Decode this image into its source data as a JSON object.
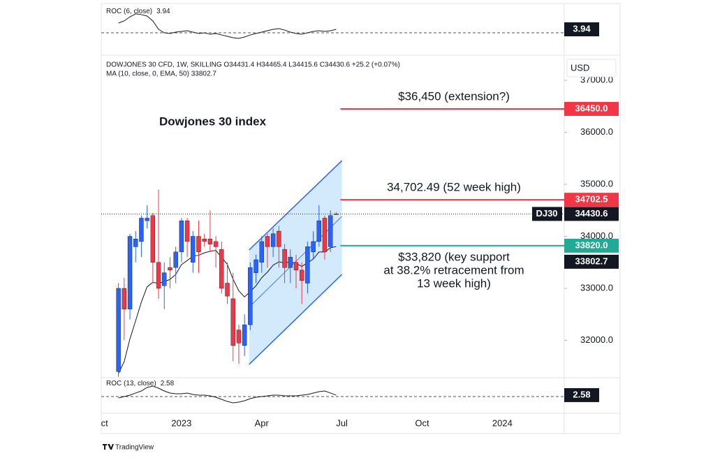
{
  "chart_data": {
    "type": "candlestick",
    "title": "Dowjones 30 index",
    "header": "DOWJONES 30 CFD, 1W, SKILLING  O34431.4  H34465.4  L34415.6  C34430.6  +25.2 (+0.07%)",
    "ma_label": "MA (10, close, 0, EMA, 50)  33802.7",
    "currency": "USD",
    "symbol": "DJ30",
    "up_color": "#2962ff",
    "down_color": "#f23645",
    "open": [
      31400,
      33000,
      32600,
      33800,
      33900,
      34300,
      34400,
      33500,
      33050,
      33400,
      33400,
      33700,
      34300,
      33500,
      34000,
      33950,
      33950,
      33900,
      33750,
      33100,
      32800,
      32200,
      31900,
      32300,
      33300,
      33500,
      34000,
      33800,
      34100,
      33750,
      33400,
      33500,
      33350,
      33100,
      33700,
      33900,
      34350,
      33800,
      34431.4
    ],
    "high": [
      33100,
      33200,
      34050,
      34100,
      34400,
      34600,
      34450,
      34900,
      33500,
      33600,
      33800,
      34350,
      34350,
      34100,
      34300,
      34050,
      34500,
      34000,
      33900,
      33500,
      33300,
      32300,
      32500,
      33500,
      33650,
      34000,
      34050,
      34150,
      34200,
      33850,
      33750,
      33650,
      33500,
      33900,
      34100,
      34600,
      34400,
      34500,
      34465.4
    ],
    "low": [
      31300,
      32000,
      32400,
      33500,
      33600,
      34150,
      33100,
      32800,
      32600,
      33000,
      33100,
      33500,
      33600,
      33300,
      33300,
      33800,
      33700,
      33400,
      32900,
      32700,
      31600,
      31550,
      31700,
      32200,
      33100,
      33300,
      33400,
      33600,
      33400,
      33100,
      33100,
      33000,
      32700,
      32900,
      33550,
      33800,
      33550,
      33700,
      34415.6
    ],
    "close": [
      33000,
      32600,
      34000,
      33950,
      34350,
      34350,
      33500,
      33000,
      33300,
      33350,
      33700,
      34300,
      33900,
      34000,
      33700,
      33900,
      33850,
      33800,
      33000,
      32850,
      31900,
      31950,
      32300,
      33400,
      33550,
      33900,
      33800,
      34050,
      33800,
      33400,
      33600,
      33350,
      33150,
      33800,
      33900,
      34300,
      33700,
      34400,
      34430.6
    ],
    "ma": {
      "color": "#131722",
      "values": [
        31364,
        31589,
        32027,
        32377,
        32736,
        33029,
        33115,
        33094,
        33131,
        33171,
        33267,
        33455,
        33536,
        33620,
        33635,
        33683,
        33713,
        33729,
        33596,
        33460,
        33176,
        32953,
        32834,
        32937,
        33048,
        33203,
        33312,
        33446,
        33510,
        33490,
        33510,
        33481,
        33421,
        33490,
        33565,
        33699,
        33699,
        33780,
        33802.7
      ]
    },
    "levels": [
      {
        "value": 36450,
        "label": "36450.0",
        "text": [
          "$36,450 (extension?)"
        ],
        "color": "#f23645"
      },
      {
        "value": 34702.5,
        "label": "34702.5",
        "text": [
          "34,702.49 (52 week high)"
        ],
        "color": "#f23645"
      },
      {
        "value": 33820,
        "label": "33820.0",
        "text": [
          "$33,820 (key support",
          "at 38.2% retracement from",
          "13 week high)"
        ],
        "color": "#22ab94"
      }
    ],
    "channel": {
      "x": [
        22.8,
        39
      ],
      "upper": [
        33738,
        35456
      ],
      "lower": [
        31537,
        33268
      ],
      "mid": [
        32638,
        34383
      ],
      "color": "#2962ff"
    },
    "ylim": [
      31295,
      37470
    ],
    "yticks": [
      {
        "value": 37000,
        "label": "37000.0"
      },
      {
        "value": 36000,
        "label": "36000.0"
      },
      {
        "value": 35000,
        "label": "35000.0"
      },
      {
        "value": 34000,
        "label": "34000.0"
      },
      {
        "value": 33000,
        "label": "33000.0"
      },
      {
        "value": 32000,
        "label": "32000.0"
      }
    ],
    "xlim": [
      -3,
      77.8
    ],
    "xticks": [
      {
        "value": -3.05,
        "label": "Oct"
      },
      {
        "value": 11,
        "label": "2023"
      },
      {
        "value": 25,
        "label": "Apr"
      },
      {
        "value": 39,
        "label": "Jul"
      },
      {
        "value": 53,
        "label": "Oct"
      },
      {
        "value": 67,
        "label": "2024"
      }
    ],
    "indicators": [
      {
        "name": "ROC (6, close)",
        "last": 3.94,
        "color": "#131722",
        "ylim": [
          -22,
          29.1
        ],
        "yticks": [
          0
        ],
        "values": [
          11,
          13.4,
          18,
          21.3,
          20.5,
          18.9,
          13.4,
          3.9,
          0,
          -0.8,
          0.8,
          1.6,
          2.4,
          0.8,
          -0.8,
          0,
          -1.6,
          -0.8,
          -2.4,
          -3.9,
          -5.5,
          -6.3,
          -4.7,
          -2.4,
          -0.8,
          0.8,
          2.4,
          3.9,
          4.7,
          3.1,
          0.8,
          -0.8,
          -1.6,
          0,
          1.6,
          2.4,
          1.6,
          2.4,
          3.94
        ]
      },
      {
        "name": "ROC (13, close)",
        "last": 2.58,
        "color": "#131722",
        "ylim": [
          -30,
          31.25
        ],
        "yticks": [
          0
        ],
        "values": [
          -2.5,
          0,
          2.5,
          6.3,
          10,
          16.3,
          18.8,
          15,
          10,
          6.3,
          5,
          5,
          6.3,
          3.8,
          2.5,
          2.5,
          1.3,
          -1.3,
          -5,
          -8.8,
          -11.3,
          -10,
          -7.5,
          -3.8,
          -1.3,
          0,
          1.3,
          2.5,
          2.5,
          1.3,
          1.3,
          1.3,
          2.5,
          3.8,
          6.3,
          8.8,
          10,
          6.3,
          2.58
        ]
      }
    ]
  },
  "footer": "TradingView"
}
